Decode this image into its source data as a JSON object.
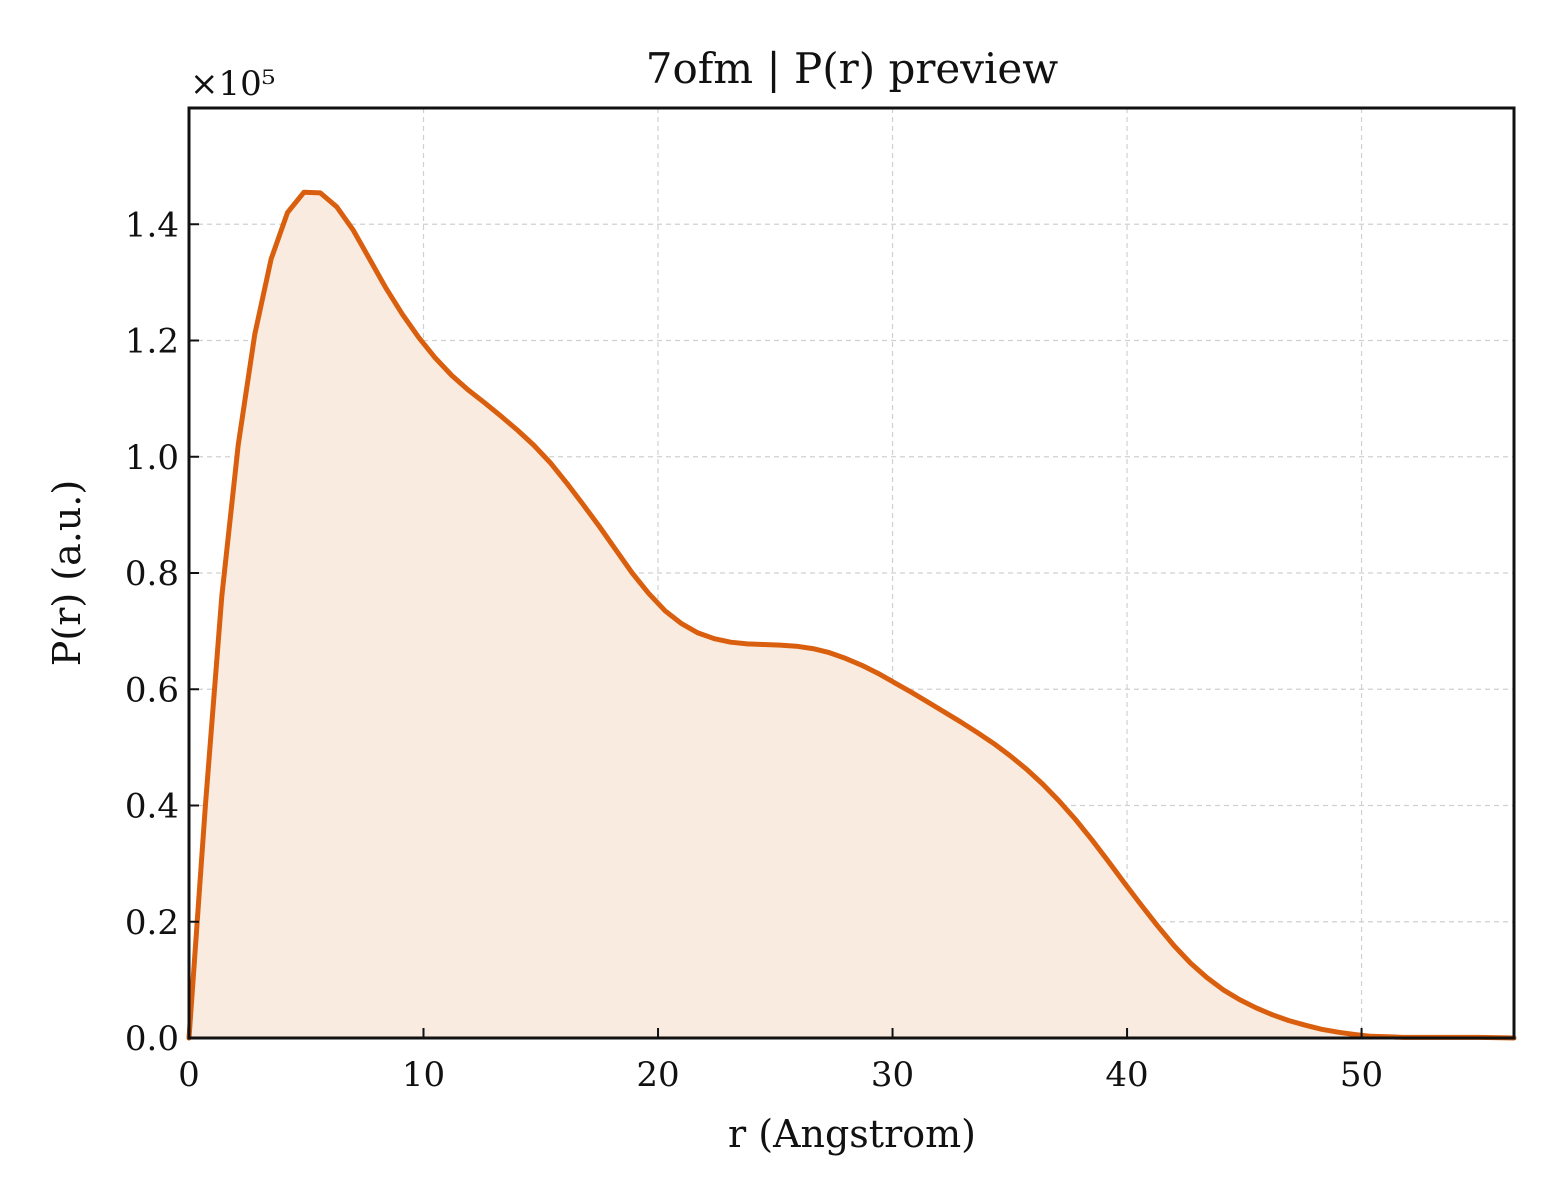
{
  "chart_data": {
    "type": "area",
    "title": "7ofm | P(r) preview",
    "xlabel": "r (Angstrom)",
    "ylabel": "P(r) (a.u.)",
    "y_scale_label": "×10⁵",
    "y_scale_factor": 100000,
    "xlim": [
      0,
      56.5
    ],
    "ylim": [
      0,
      1.6
    ],
    "x_ticks": [
      0,
      10,
      20,
      30,
      40,
      50
    ],
    "x_tick_labels": [
      "0",
      "10",
      "20",
      "30",
      "40",
      "50"
    ],
    "y_ticks": [
      0.0,
      0.2,
      0.4,
      0.6,
      0.8,
      1.0,
      1.2,
      1.4
    ],
    "y_tick_labels": [
      "0.0",
      "0.2",
      "0.4",
      "0.6",
      "0.8",
      "1.0",
      "1.2",
      "1.4"
    ],
    "grid": true,
    "line_color": "#d95f0e",
    "fill_color": "#f9ebe0",
    "series": [
      {
        "x": [
          0,
          0.7,
          1.4,
          2.1,
          2.8,
          3.5,
          4.2,
          4.9,
          5.6,
          6.3,
          7.0,
          7.7,
          8.4,
          9.1,
          9.8,
          10.5,
          11.2,
          11.9,
          12.6,
          13.3,
          14.0,
          14.7,
          15.4,
          16.1,
          16.8,
          17.5,
          18.2,
          18.9,
          19.6,
          20.3,
          21.0,
          21.7,
          22.4,
          23.1,
          23.8,
          24.5,
          25.2,
          25.9,
          26.6,
          27.3,
          28.0,
          28.7,
          29.4,
          30.1,
          30.8,
          31.5,
          32.2,
          32.9,
          33.6,
          34.3,
          35.0,
          35.7,
          36.4,
          37.1,
          37.8,
          38.5,
          39.2,
          39.9,
          40.6,
          41.3,
          42.0,
          42.7,
          43.4,
          44.1,
          44.8,
          45.5,
          46.2,
          46.9,
          47.6,
          48.3,
          49.0,
          49.7,
          50.4,
          51.1,
          51.8,
          52.5,
          53.2,
          54.0,
          55.0,
          56.0,
          56.5
        ],
        "y": [
          0.0,
          0.4,
          0.76,
          1.02,
          1.21,
          1.34,
          1.42,
          1.455,
          1.454,
          1.43,
          1.39,
          1.34,
          1.29,
          1.245,
          1.205,
          1.17,
          1.14,
          1.115,
          1.093,
          1.07,
          1.046,
          1.02,
          0.99,
          0.955,
          0.918,
          0.88,
          0.84,
          0.8,
          0.765,
          0.735,
          0.713,
          0.697,
          0.687,
          0.681,
          0.678,
          0.677,
          0.676,
          0.674,
          0.67,
          0.663,
          0.653,
          0.641,
          0.627,
          0.611,
          0.595,
          0.578,
          0.561,
          0.544,
          0.526,
          0.507,
          0.486,
          0.463,
          0.437,
          0.408,
          0.376,
          0.341,
          0.304,
          0.266,
          0.229,
          0.193,
          0.159,
          0.129,
          0.104,
          0.083,
          0.066,
          0.052,
          0.04,
          0.03,
          0.022,
          0.015,
          0.01,
          0.006,
          0.003,
          0.002,
          0.001,
          0.001,
          0.001,
          0.001,
          0.001,
          0.0005,
          0.0
        ]
      }
    ]
  }
}
